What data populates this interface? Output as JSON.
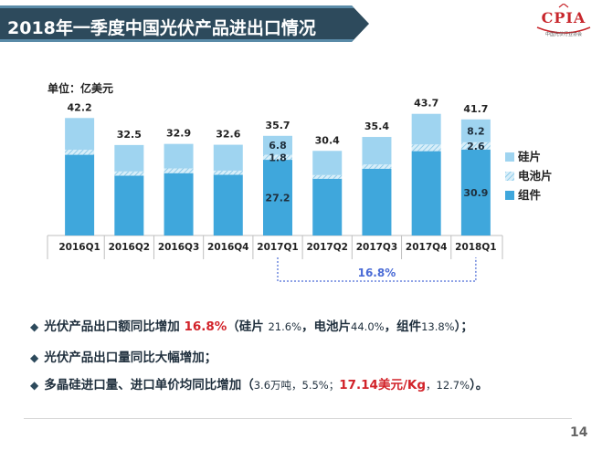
{
  "title": "2018年一季度中国光伏产品进出口情况",
  "logo": {
    "name": "CPIA",
    "subtitle": "中国光伏行业协会"
  },
  "unit": "单位：亿美元",
  "colors": {
    "silicon": "#9fd4f0",
    "cell": "#bfe3f5",
    "module": "#3fa7dc",
    "title_bg": "#2d4a5c",
    "highlight": "#d2232a",
    "bracket": "#4a6bd6"
  },
  "chart_data": {
    "type": "bar",
    "stacked": true,
    "categories": [
      "2016Q1",
      "2016Q2",
      "2016Q3",
      "2016Q4",
      "2017Q1",
      "2017Q2",
      "2017Q3",
      "2017Q4",
      "2018Q1"
    ],
    "totals": [
      "42.2",
      "32.5",
      "32.9",
      "32.6",
      "35.7",
      "30.4",
      "35.4",
      "43.7",
      "41.7"
    ],
    "series": [
      {
        "name": "组件",
        "values": [
          29.0,
          21.5,
          22.4,
          21.8,
          27.2,
          20.4,
          24.0,
          30.3,
          30.9
        ]
      },
      {
        "name": "电池片",
        "values": [
          1.8,
          1.5,
          1.7,
          1.5,
          1.8,
          1.3,
          1.5,
          2.4,
          2.6
        ]
      },
      {
        "name": "硅片",
        "values": [
          11.4,
          9.5,
          8.8,
          9.3,
          6.8,
          8.7,
          9.9,
          11.0,
          8.2
        ]
      }
    ],
    "segment_labels": [
      {
        "category": "2017Q1",
        "series": "组件",
        "text": "27.2"
      },
      {
        "category": "2017Q1",
        "series": "电池片",
        "text": "1.8"
      },
      {
        "category": "2017Q1",
        "series": "硅片",
        "text": "6.8"
      },
      {
        "category": "2018Q1",
        "series": "组件",
        "text": "30.9"
      },
      {
        "category": "2018Q1",
        "series": "电池片",
        "text": "2.6"
      },
      {
        "category": "2018Q1",
        "series": "硅片",
        "text": "8.2"
      }
    ],
    "legend": [
      "硅片",
      "电池片",
      "组件"
    ],
    "legend_position": "right",
    "ylim": [
      0,
      50
    ],
    "annotation": {
      "from": "2017Q1",
      "to": "2018Q1",
      "text": "16.8%"
    }
  },
  "bullets": [
    {
      "parts": [
        {
          "t": "光伏产品出口额同比增加 ",
          "c": ""
        },
        {
          "t": "16.8%",
          "c": "hl"
        },
        {
          "t": "（硅片 ",
          "c": ""
        },
        {
          "t": "21.6%",
          "c": "small"
        },
        {
          "t": "，电池片",
          "c": ""
        },
        {
          "t": "44.0%",
          "c": "small"
        },
        {
          "t": "，组件",
          "c": ""
        },
        {
          "t": "13.8%",
          "c": "small"
        },
        {
          "t": "）；",
          "c": ""
        }
      ]
    },
    {
      "parts": [
        {
          "t": "光伏产品出口量同比大幅增加；",
          "c": ""
        }
      ]
    },
    {
      "parts": [
        {
          "t": "多晶硅进口量、进口单价均同比增加（",
          "c": ""
        },
        {
          "t": "3.6万吨，5.5%；",
          "c": "small"
        },
        {
          "t": "17.14美元/Kg",
          "c": "hl"
        },
        {
          "t": "，12.7%",
          "c": "small"
        },
        {
          "t": "）。",
          "c": ""
        }
      ]
    }
  ],
  "page_number": "14"
}
